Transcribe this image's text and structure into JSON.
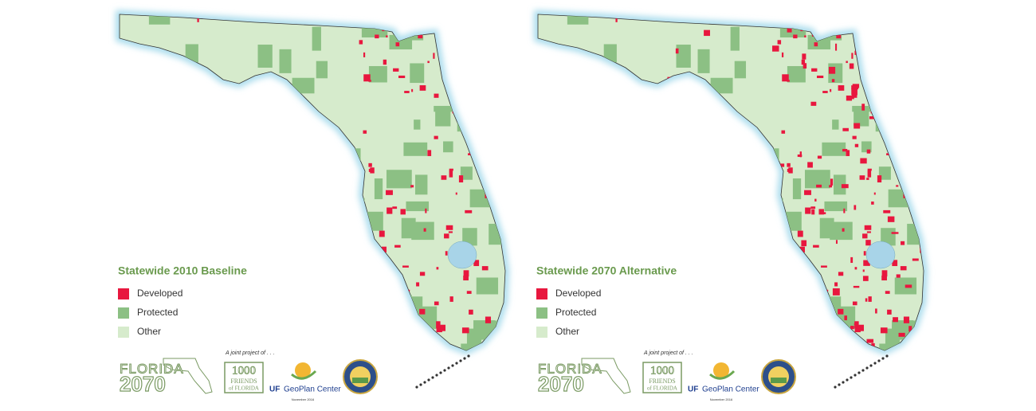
{
  "maps": [
    {
      "title": "Statewide 2010 Baseline",
      "legend": [
        {
          "label": "Developed",
          "color": "#e8173e"
        },
        {
          "label": "Protected",
          "color": "#8cc084"
        },
        {
          "label": "Other",
          "color": "#d6ebcc"
        }
      ],
      "credits": {
        "joint": "A joint project of . . .",
        "florida": "FLORIDA",
        "year": "2070",
        "friends_number": "1000",
        "friends_line1": "FRIENDS",
        "friends_line2": "of FLORIDA",
        "uf": "UF",
        "geoplan": "GeoPlan Center",
        "date": "November 2016"
      }
    },
    {
      "title": "Statewide 2070 Alternative",
      "legend": [
        {
          "label": "Developed",
          "color": "#e8173e"
        },
        {
          "label": "Protected",
          "color": "#8cc084"
        },
        {
          "label": "Other",
          "color": "#d6ebcc"
        }
      ],
      "credits": {
        "joint": "A joint project of . . .",
        "florida": "FLORIDA",
        "year": "2070",
        "friends_number": "1000",
        "friends_line1": "FRIENDS",
        "friends_line2": "of FLORIDA",
        "uf": "UF",
        "geoplan": "GeoPlan Center",
        "date": "November 2016"
      }
    }
  ]
}
